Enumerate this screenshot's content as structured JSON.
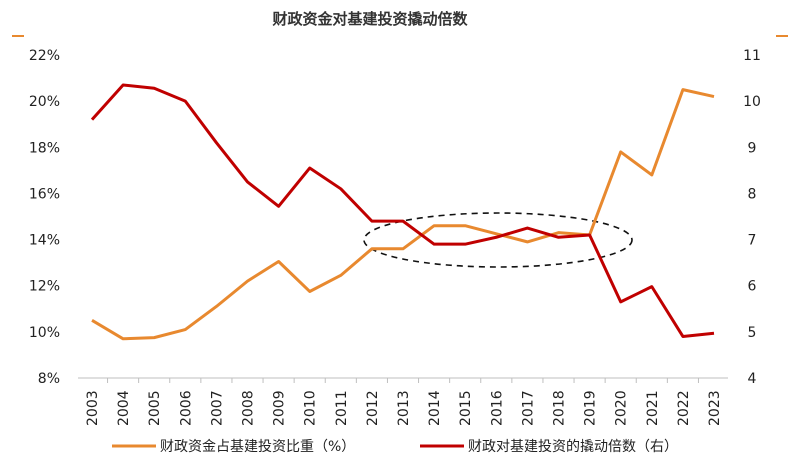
{
  "chart_data": {
    "type": "line",
    "title": "财政资金对基建投资撬动倍数",
    "categories": [
      "2003",
      "2004",
      "2005",
      "2006",
      "2007",
      "2008",
      "2009",
      "2010",
      "2011",
      "2012",
      "2013",
      "2014",
      "2015",
      "2016",
      "2017",
      "2018",
      "2019",
      "2020",
      "2021",
      "2022",
      "2023"
    ],
    "y_left": {
      "min": 8,
      "max": 22,
      "step": 2,
      "tick_labels": [
        "8%",
        "10%",
        "12%",
        "14%",
        "16%",
        "18%",
        "20%",
        "22%"
      ]
    },
    "y_right": {
      "min": 4,
      "max": 11,
      "step": 1,
      "tick_labels": [
        "4",
        "5",
        "6",
        "7",
        "8",
        "9",
        "10",
        "11"
      ]
    },
    "series": [
      {
        "name": "财政资金占基建投资比重（%）",
        "axis": "left",
        "color": "#E8892F",
        "values": [
          10.5,
          9.7,
          9.75,
          10.1,
          11.1,
          12.2,
          13.05,
          11.75,
          12.45,
          13.6,
          13.6,
          14.6,
          14.6,
          14.25,
          13.9,
          14.3,
          14.2,
          17.8,
          16.8,
          20.5,
          20.2
        ]
      },
      {
        "name": "财政对基建投资的撬动倍数（右）",
        "axis": "right",
        "color": "#C00000",
        "values": [
          9.6,
          10.35,
          10.28,
          10.0,
          9.1,
          8.25,
          7.72,
          8.55,
          8.1,
          7.4,
          7.4,
          6.9,
          6.9,
          7.05,
          7.25,
          7.05,
          7.1,
          5.65,
          5.98,
          4.9,
          4.97
        ]
      }
    ],
    "legend_position": "bottom",
    "grid": false,
    "annotation": "dashed ellipse around 2012–2019 region"
  }
}
